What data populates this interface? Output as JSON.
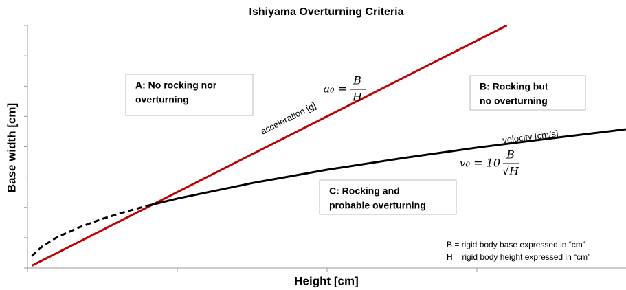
{
  "chart_data": {
    "type": "line",
    "title": "Ishiyama Overturning Criteria",
    "xlabel": "Height [cm]",
    "ylabel": "Base width [cm]",
    "xlim": [
      0,
      4
    ],
    "ylim": [
      0,
      8
    ],
    "xticks": [
      0,
      1,
      2,
      3,
      4
    ],
    "yticks": [
      0,
      1,
      2,
      3,
      4,
      5,
      6,
      7,
      8
    ],
    "series": [
      {
        "name": "acceleration [g]",
        "color": "#c00000",
        "style": "solid",
        "x": [
          0.03,
          3.2
        ],
        "values": [
          0.08,
          8
        ]
      },
      {
        "name": "velocity [cm/s]",
        "color": "#000000",
        "style": "solid",
        "x": [
          0.79,
          1,
          1.5,
          2,
          2.5,
          3,
          3.5,
          4
        ],
        "values": [
          2.04,
          2.29,
          2.8,
          3.24,
          3.62,
          3.97,
          4.28,
          4.58
        ]
      },
      {
        "color": "#000000",
        "style": "dashed",
        "x": [
          0.03,
          0.1,
          0.2,
          0.35,
          0.5,
          0.65,
          0.79
        ],
        "values": [
          0.4,
          0.72,
          1.02,
          1.35,
          1.62,
          1.85,
          2.04
        ]
      }
    ],
    "formulas": [
      {
        "lhs": "a₀ =",
        "num": "B",
        "den": "H"
      },
      {
        "lhs": "v₀ = 10",
        "num": "B",
        "den": "√H"
      }
    ],
    "regions": [
      {
        "lines": [
          "A: No rocking nor",
          "overturning"
        ]
      },
      {
        "lines": [
          "B: Rocking but",
          "no overturning"
        ]
      },
      {
        "lines": [
          "C: Rocking and",
          "probable overturning"
        ]
      }
    ],
    "notes": [
      "B = rigid body base expressed in “cm”",
      "H = rigid body height expressed in “cm”"
    ]
  }
}
